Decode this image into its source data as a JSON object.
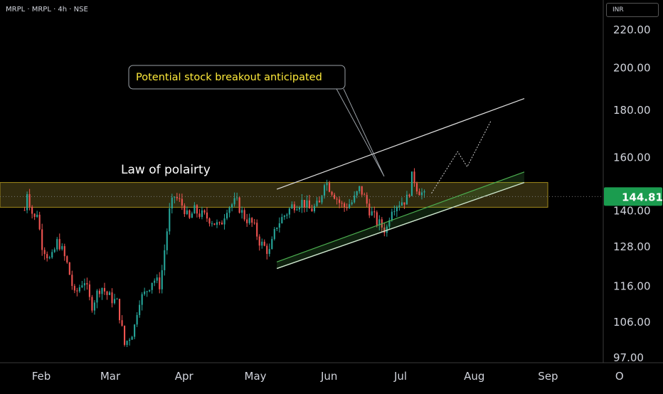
{
  "header": {
    "symbol_line": "MRPL · MRPL · 4h · NSE",
    "currency": "INR"
  },
  "chart_data": {
    "type": "line",
    "title": "MRPL · MRPL · 4h · NSE",
    "ylabel": "",
    "xlabel": "",
    "y_scale": "log",
    "ylim": [
      97,
      230
    ],
    "price_ticks": [
      "220.00",
      "200.00",
      "180.00",
      "160.00",
      "140.00",
      "128.00",
      "116.00",
      "106.00",
      "97.00"
    ],
    "month_ticks": [
      "Feb",
      "Mar",
      "Apr",
      "May",
      "Jun",
      "Jul",
      "Aug",
      "Sep",
      "O"
    ],
    "last_price": "144.81",
    "series": [
      {
        "values_date": [
          "2024-01-25",
          "2024-01-26",
          "2024-01-29",
          "2024-01-30",
          "2024-02-01",
          "2024-02-05",
          "2024-02-08",
          "2024-02-12",
          "2024-02-15",
          "2024-02-19",
          "2024-02-22",
          "2024-02-26",
          "2024-02-29",
          "2024-03-04",
          "2024-03-07",
          "2024-03-11",
          "2024-03-13",
          "2024-03-15",
          "2024-03-19",
          "2024-03-22",
          "2024-03-26",
          "2024-03-28",
          "2024-04-01",
          "2024-04-03",
          "2024-04-05",
          "2024-04-09",
          "2024-04-12",
          "2024-04-16",
          "2024-04-19",
          "2024-04-23",
          "2024-04-26",
          "2024-04-30",
          "2024-05-03",
          "2024-05-07",
          "2024-05-10",
          "2024-05-14",
          "2024-05-17",
          "2024-05-21",
          "2024-05-24",
          "2024-05-28",
          "2024-05-30",
          "2024-06-03",
          "2024-06-05",
          "2024-06-07",
          "2024-06-11",
          "2024-06-14",
          "2024-06-18",
          "2024-06-21",
          "2024-06-25",
          "2024-06-27",
          "2024-07-01",
          "2024-07-04",
          "2024-07-06",
          "2024-07-08",
          "2024-07-10",
          "2024-07-11"
        ],
        "values": [
          140,
          147,
          136,
          141,
          129,
          123,
          130,
          122,
          113,
          118,
          110,
          116,
          113,
          111,
          100,
          104,
          112,
          113,
          118,
          116,
          140,
          145,
          141,
          136,
          140,
          138,
          137,
          134,
          141,
          143,
          138,
          135,
          129,
          126,
          135,
          139,
          142,
          143,
          140,
          142,
          151,
          146,
          143,
          141,
          143,
          148,
          140,
          136,
          133,
          141,
          143,
          144,
          153,
          148,
          146,
          144.81
        ]
      }
    ],
    "zone": {
      "upper": 150,
      "lower": 141
    },
    "resistance_line": {
      "from": {
        "date": "2024-05-10",
        "price": 147.5
      },
      "to": {
        "date": "2024-08-22",
        "price": 185
      }
    },
    "support_lines": [
      {
        "from": {
          "date": "2024-05-10",
          "price": 123
        },
        "to": {
          "date": "2024-08-22",
          "price": 154
        }
      },
      {
        "from": {
          "date": "2024-05-10",
          "price": 121
        },
        "to": {
          "date": "2024-08-22",
          "price": 150
        }
      }
    ],
    "projection": [
      {
        "date": "2024-07-14",
        "price": 146
      },
      {
        "date": "2024-07-25",
        "price": 162
      },
      {
        "date": "2024-07-29",
        "price": 156
      },
      {
        "date": "2024-08-08",
        "price": 175
      }
    ],
    "annotations": [
      {
        "text": "Law of polairty"
      },
      {
        "text": "Potential stock breakout anticipated"
      }
    ],
    "colors": {
      "up": "#26a69a",
      "down": "#ef5350",
      "zone_fill": "#3a3312",
      "zone_border": "#a18a1c",
      "callout_text": "#ffeb3b",
      "channel_green": "#4caf50",
      "price_tag": "#1b9c4f"
    },
    "grid": false,
    "legend": "none"
  }
}
